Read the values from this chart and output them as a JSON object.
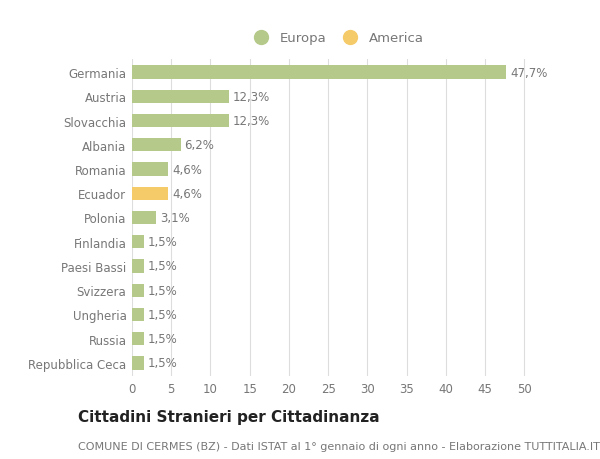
{
  "categories": [
    "Repubblica Ceca",
    "Russia",
    "Ungheria",
    "Svizzera",
    "Paesi Bassi",
    "Finlandia",
    "Polonia",
    "Ecuador",
    "Romania",
    "Albania",
    "Slovacchia",
    "Austria",
    "Germania"
  ],
  "values": [
    1.5,
    1.5,
    1.5,
    1.5,
    1.5,
    1.5,
    3.1,
    4.6,
    4.6,
    6.2,
    12.3,
    12.3,
    47.7
  ],
  "labels": [
    "1,5%",
    "1,5%",
    "1,5%",
    "1,5%",
    "1,5%",
    "1,5%",
    "3,1%",
    "4,6%",
    "4,6%",
    "6,2%",
    "12,3%",
    "12,3%",
    "47,7%"
  ],
  "colors": [
    "#b5c98a",
    "#b5c98a",
    "#b5c98a",
    "#b5c98a",
    "#b5c98a",
    "#b5c98a",
    "#b5c98a",
    "#f5cb6a",
    "#b5c98a",
    "#b5c98a",
    "#b5c98a",
    "#b5c98a",
    "#b5c98a"
  ],
  "legend_europa_color": "#b5c98a",
  "legend_america_color": "#f5cb6a",
  "legend_europa_label": "Europa",
  "legend_america_label": "America",
  "title": "Cittadini Stranieri per Cittadinanza",
  "subtitle": "COMUNE DI CERMES (BZ) - Dati ISTAT al 1° gennaio di ogni anno - Elaborazione TUTTITALIA.IT",
  "xlim": [
    0,
    52
  ],
  "xticks": [
    0,
    5,
    10,
    15,
    20,
    25,
    30,
    35,
    40,
    45,
    50
  ],
  "background_color": "#ffffff",
  "grid_color": "#dddddd",
  "bar_height": 0.55,
  "label_fontsize": 8.5,
  "tick_fontsize": 8.5,
  "title_fontsize": 11,
  "subtitle_fontsize": 8,
  "text_color": "#777777",
  "title_color": "#222222"
}
